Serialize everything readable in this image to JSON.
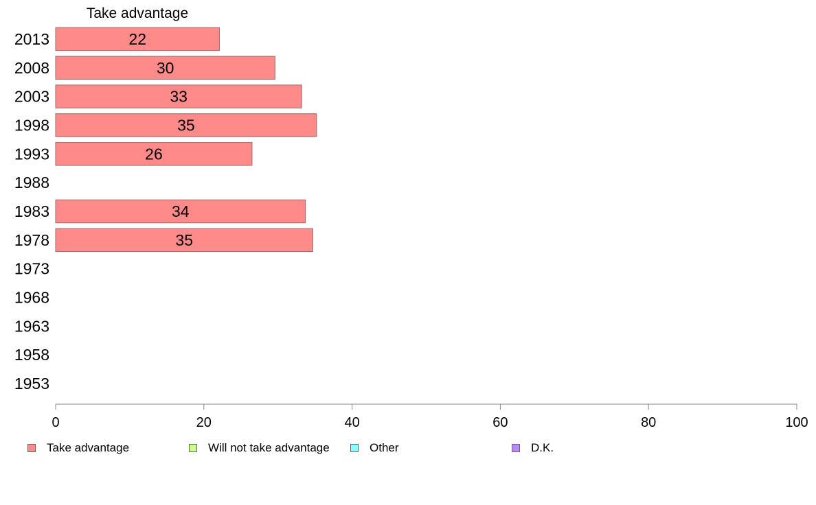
{
  "chart_data": {
    "type": "bar",
    "orientation": "horizontal",
    "title": "Take advantage",
    "categories": [
      "2013",
      "2008",
      "2003",
      "1998",
      "1993",
      "1988",
      "1983",
      "1978",
      "1973",
      "1968",
      "1963",
      "1958",
      "1953"
    ],
    "series": [
      {
        "name": "Take advantage",
        "color": "#ff8a8a",
        "values": [
          22,
          30,
          33,
          35,
          26,
          null,
          34,
          35,
          null,
          null,
          null,
          null,
          null
        ]
      },
      {
        "name": "Will not take advantage",
        "color": "#ccff88",
        "values": [
          null,
          null,
          null,
          null,
          null,
          null,
          null,
          null,
          null,
          null,
          null,
          null,
          null
        ]
      },
      {
        "name": "Other",
        "color": "#88ffff",
        "values": [
          null,
          null,
          null,
          null,
          null,
          null,
          null,
          null,
          null,
          null,
          null,
          null,
          null
        ]
      },
      {
        "name": "D.K.",
        "color": "#bb88ff",
        "values": [
          null,
          null,
          null,
          null,
          null,
          null,
          null,
          null,
          null,
          null,
          null,
          null,
          null
        ]
      }
    ],
    "value_precise": [
      22.1,
      29.6,
      33.2,
      35.2,
      26.5,
      null,
      33.7,
      34.7,
      null,
      null,
      null,
      null,
      null
    ],
    "xlim": [
      0,
      100
    ],
    "xticks": [
      "0",
      "20",
      "40",
      "60",
      "80",
      "100"
    ],
    "xlabel": "",
    "ylabel": "",
    "grid": false,
    "legend_position": "bottom"
  }
}
